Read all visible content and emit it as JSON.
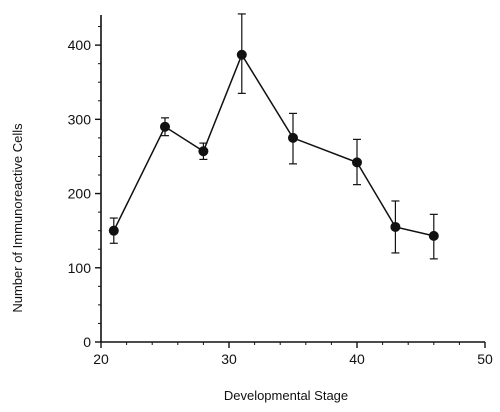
{
  "chart_data": {
    "type": "line",
    "xlabel": "Developmental Stage",
    "ylabel": "Number of Immunoreactive Cells",
    "xlim": [
      20,
      50
    ],
    "ylim": [
      0,
      450
    ],
    "x_ticks": [
      20,
      30,
      40,
      50
    ],
    "y_ticks": [
      0,
      100,
      200,
      300,
      400
    ],
    "grid": false,
    "series": [
      {
        "x": [
          21,
          25,
          28,
          31,
          35,
          40,
          43,
          46
        ],
        "y": [
          150,
          290,
          257,
          387,
          275,
          242,
          155,
          143
        ],
        "err_low": [
          133,
          278,
          246,
          335,
          240,
          212,
          120,
          112
        ],
        "err_high": [
          167,
          302,
          268,
          442,
          308,
          273,
          190,
          172
        ]
      }
    ]
  }
}
